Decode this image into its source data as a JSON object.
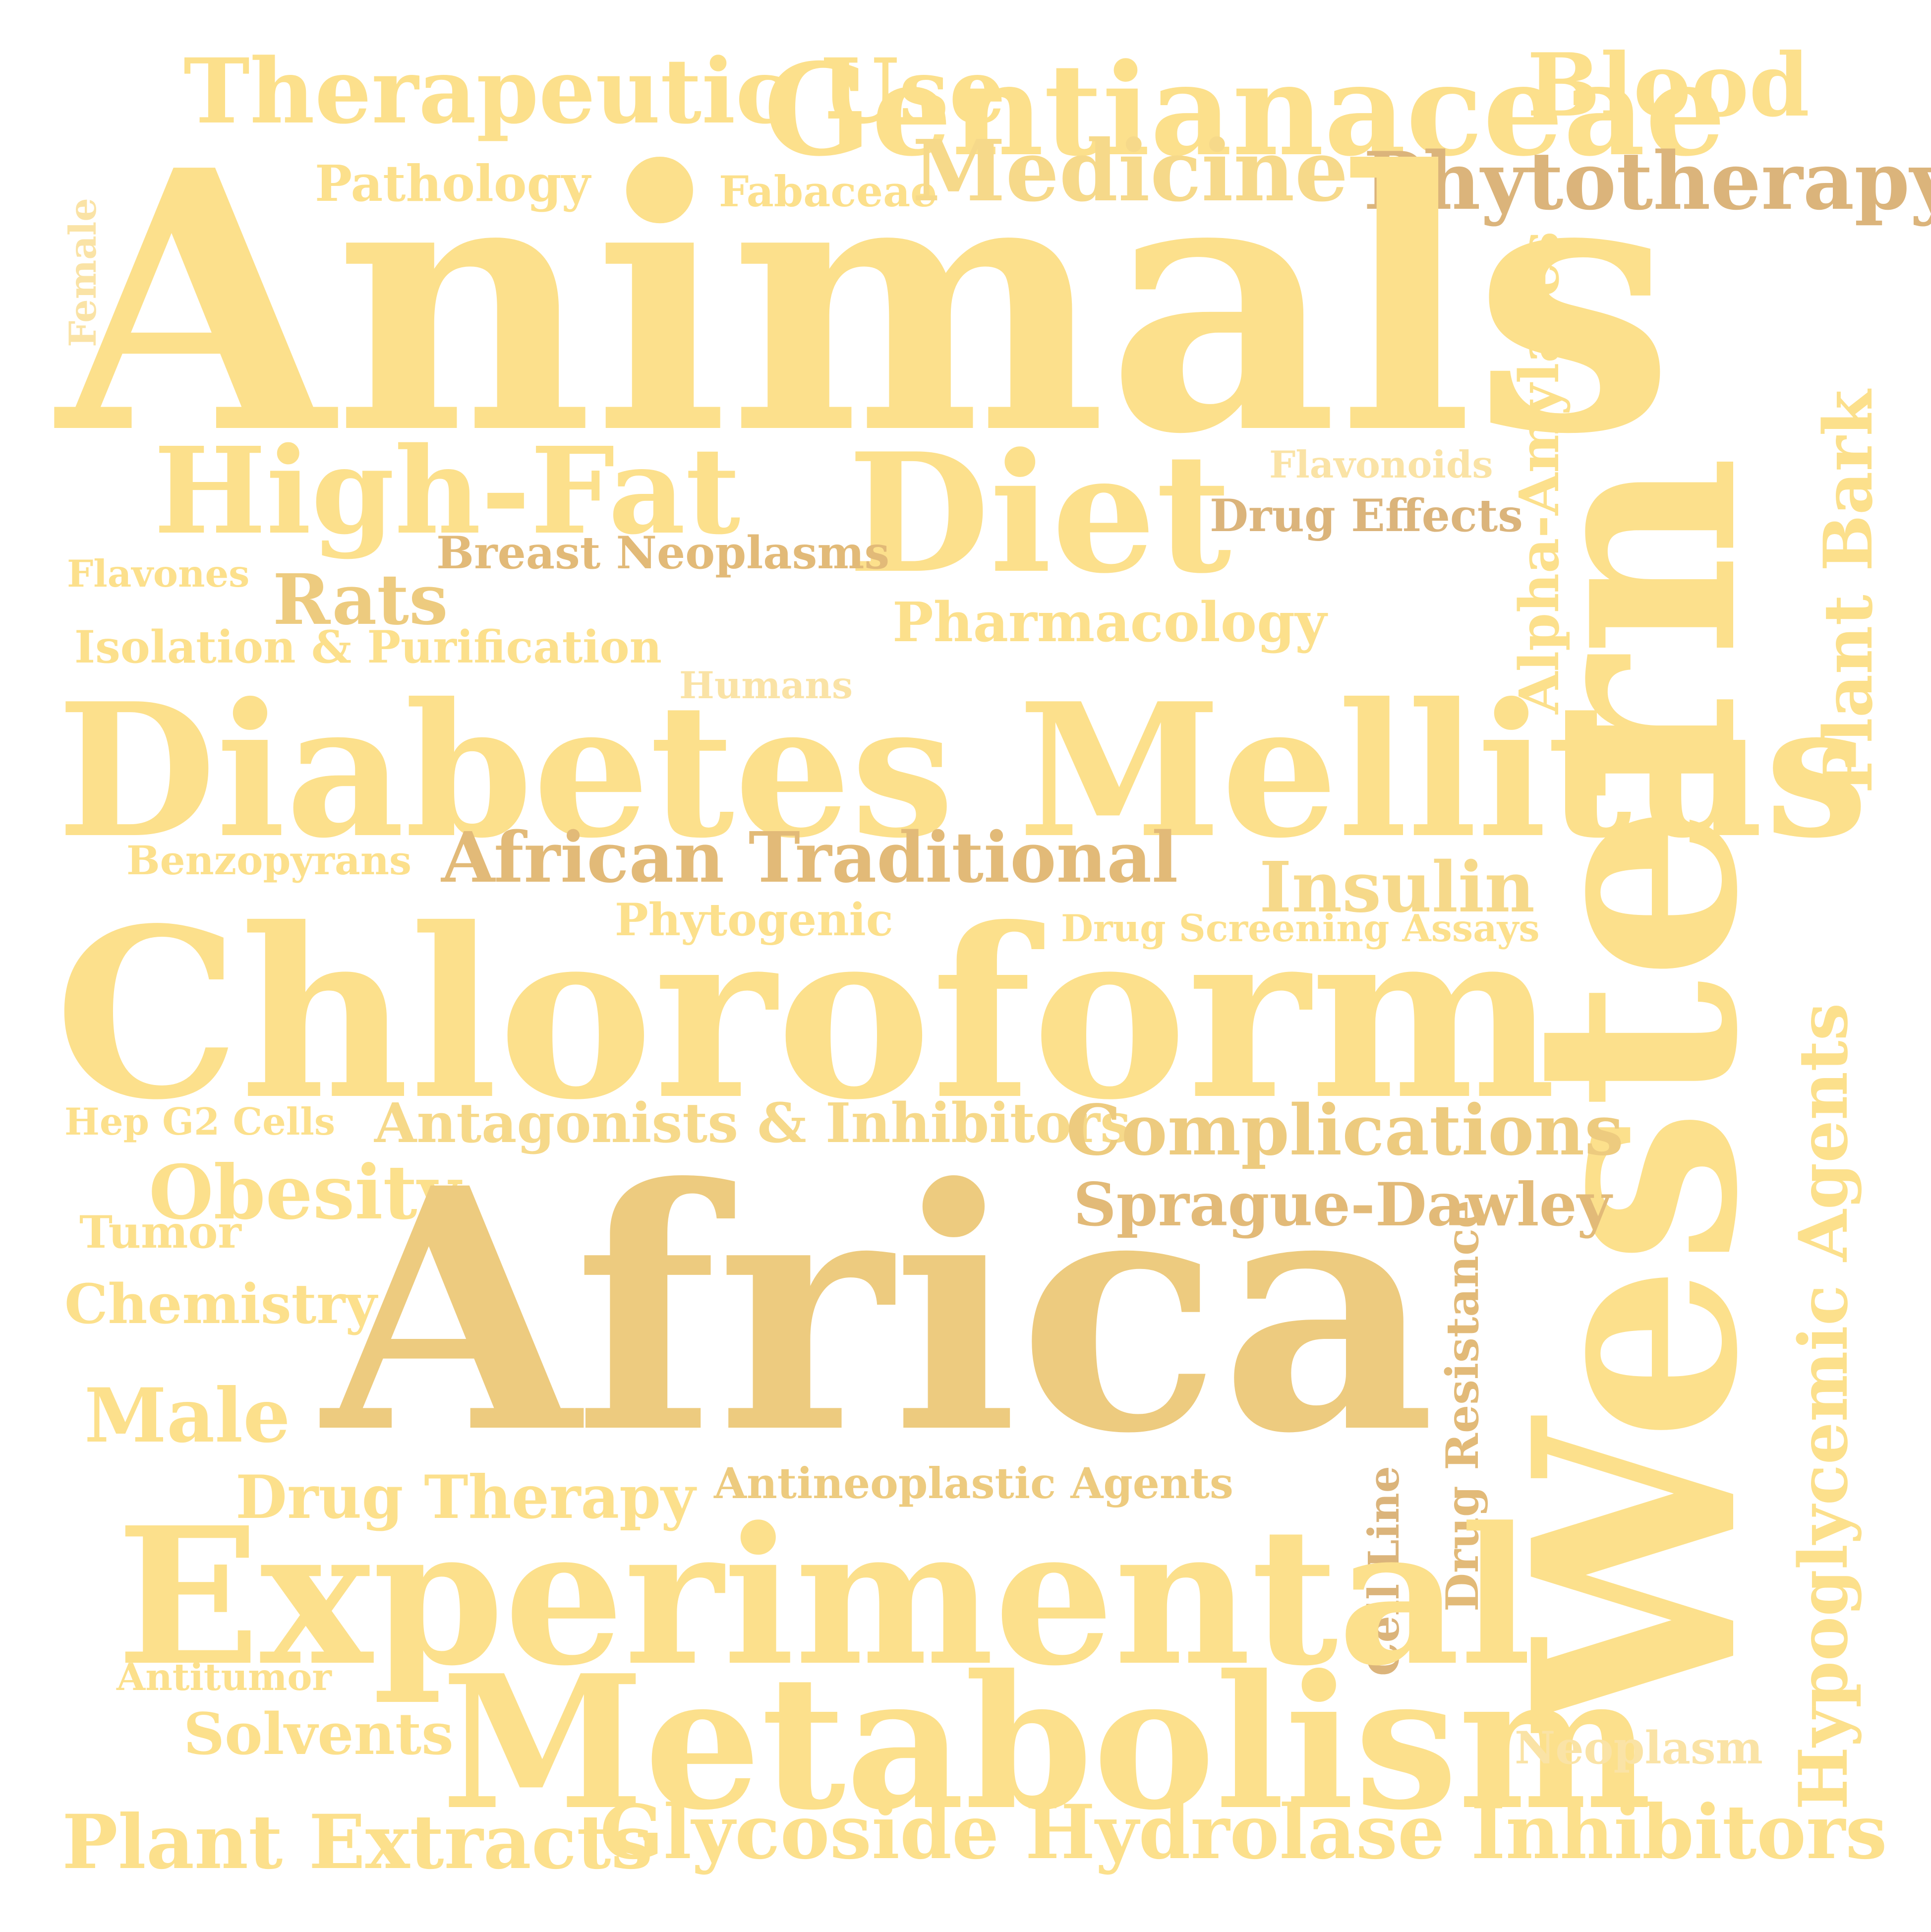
{
  "words": {
    "animals": "Animals",
    "chloroform": "Chloroform",
    "africa": "Africa",
    "western": "Western",
    "diabetes_mellitus": "Diabetes Mellitus",
    "experimental": "Experimental",
    "metabolism": "Metabolism",
    "diet": "Diet",
    "high_fat": "High-Fat",
    "gentianaceae": "Gentianaceae",
    "therapeutic_use": "Therapeutic Use",
    "blood": "Blood",
    "medicine": "Medicine",
    "phytotherapy": "Phytotherapy",
    "pathology": "Pathology",
    "fabaceae": "Fabaceae",
    "female": "Female",
    "alpha_amylases": "Alpha-Amylases",
    "plant_bark": "Plant Bark",
    "flavonoids": "Flavonoids",
    "drug_effects": "Drug Effects",
    "breast_neoplasms": "Breast Neoplasms",
    "flavones": "Flavones",
    "rats": "Rats",
    "pharmacology": "Pharmacology",
    "isolation_purification": "Isolation & Purification",
    "humans": "Humans",
    "african_traditional": "African Traditional",
    "benzopyrans": "Benzopyrans",
    "insulin": "Insulin",
    "phytogenic": "Phytogenic",
    "drug_screening_assays": "Drug Screening Assays",
    "hep_g2_cells": "Hep G2 Cells",
    "antagonists_inhibitors": "Antagonists & Inhibitors",
    "complications": "Complications",
    "obesity": "Obesity",
    "sprague_dawley": "Sprague-Dawley",
    "tumor": "Tumor",
    "chemistry": "Chemistry",
    "hypoglycemic_agents": "Hypoglycemic Agents",
    "drug_resistance": "Drug Resistance",
    "male": "Male",
    "cell_line": "Cell Line",
    "drug_therapy": "Drug Therapy",
    "antineoplastic_agents": "Antineoplastic Agents",
    "antitumor": "Antitumor",
    "solvents": "Solvents",
    "neoplasm": "Neoplasm",
    "plant_extracts": "Plant Extracts",
    "glycoside_hydrolase_inhibitors": "Glycoside Hydrolase Inhibitors"
  },
  "colors": {
    "light_gold": "#FCE08C",
    "pale_gold": "#F6D98A",
    "gold": "#EDCB7F",
    "tan": "#E2BA78",
    "dark_tan": "#DBB47B",
    "cream": "#FAE3A6"
  }
}
